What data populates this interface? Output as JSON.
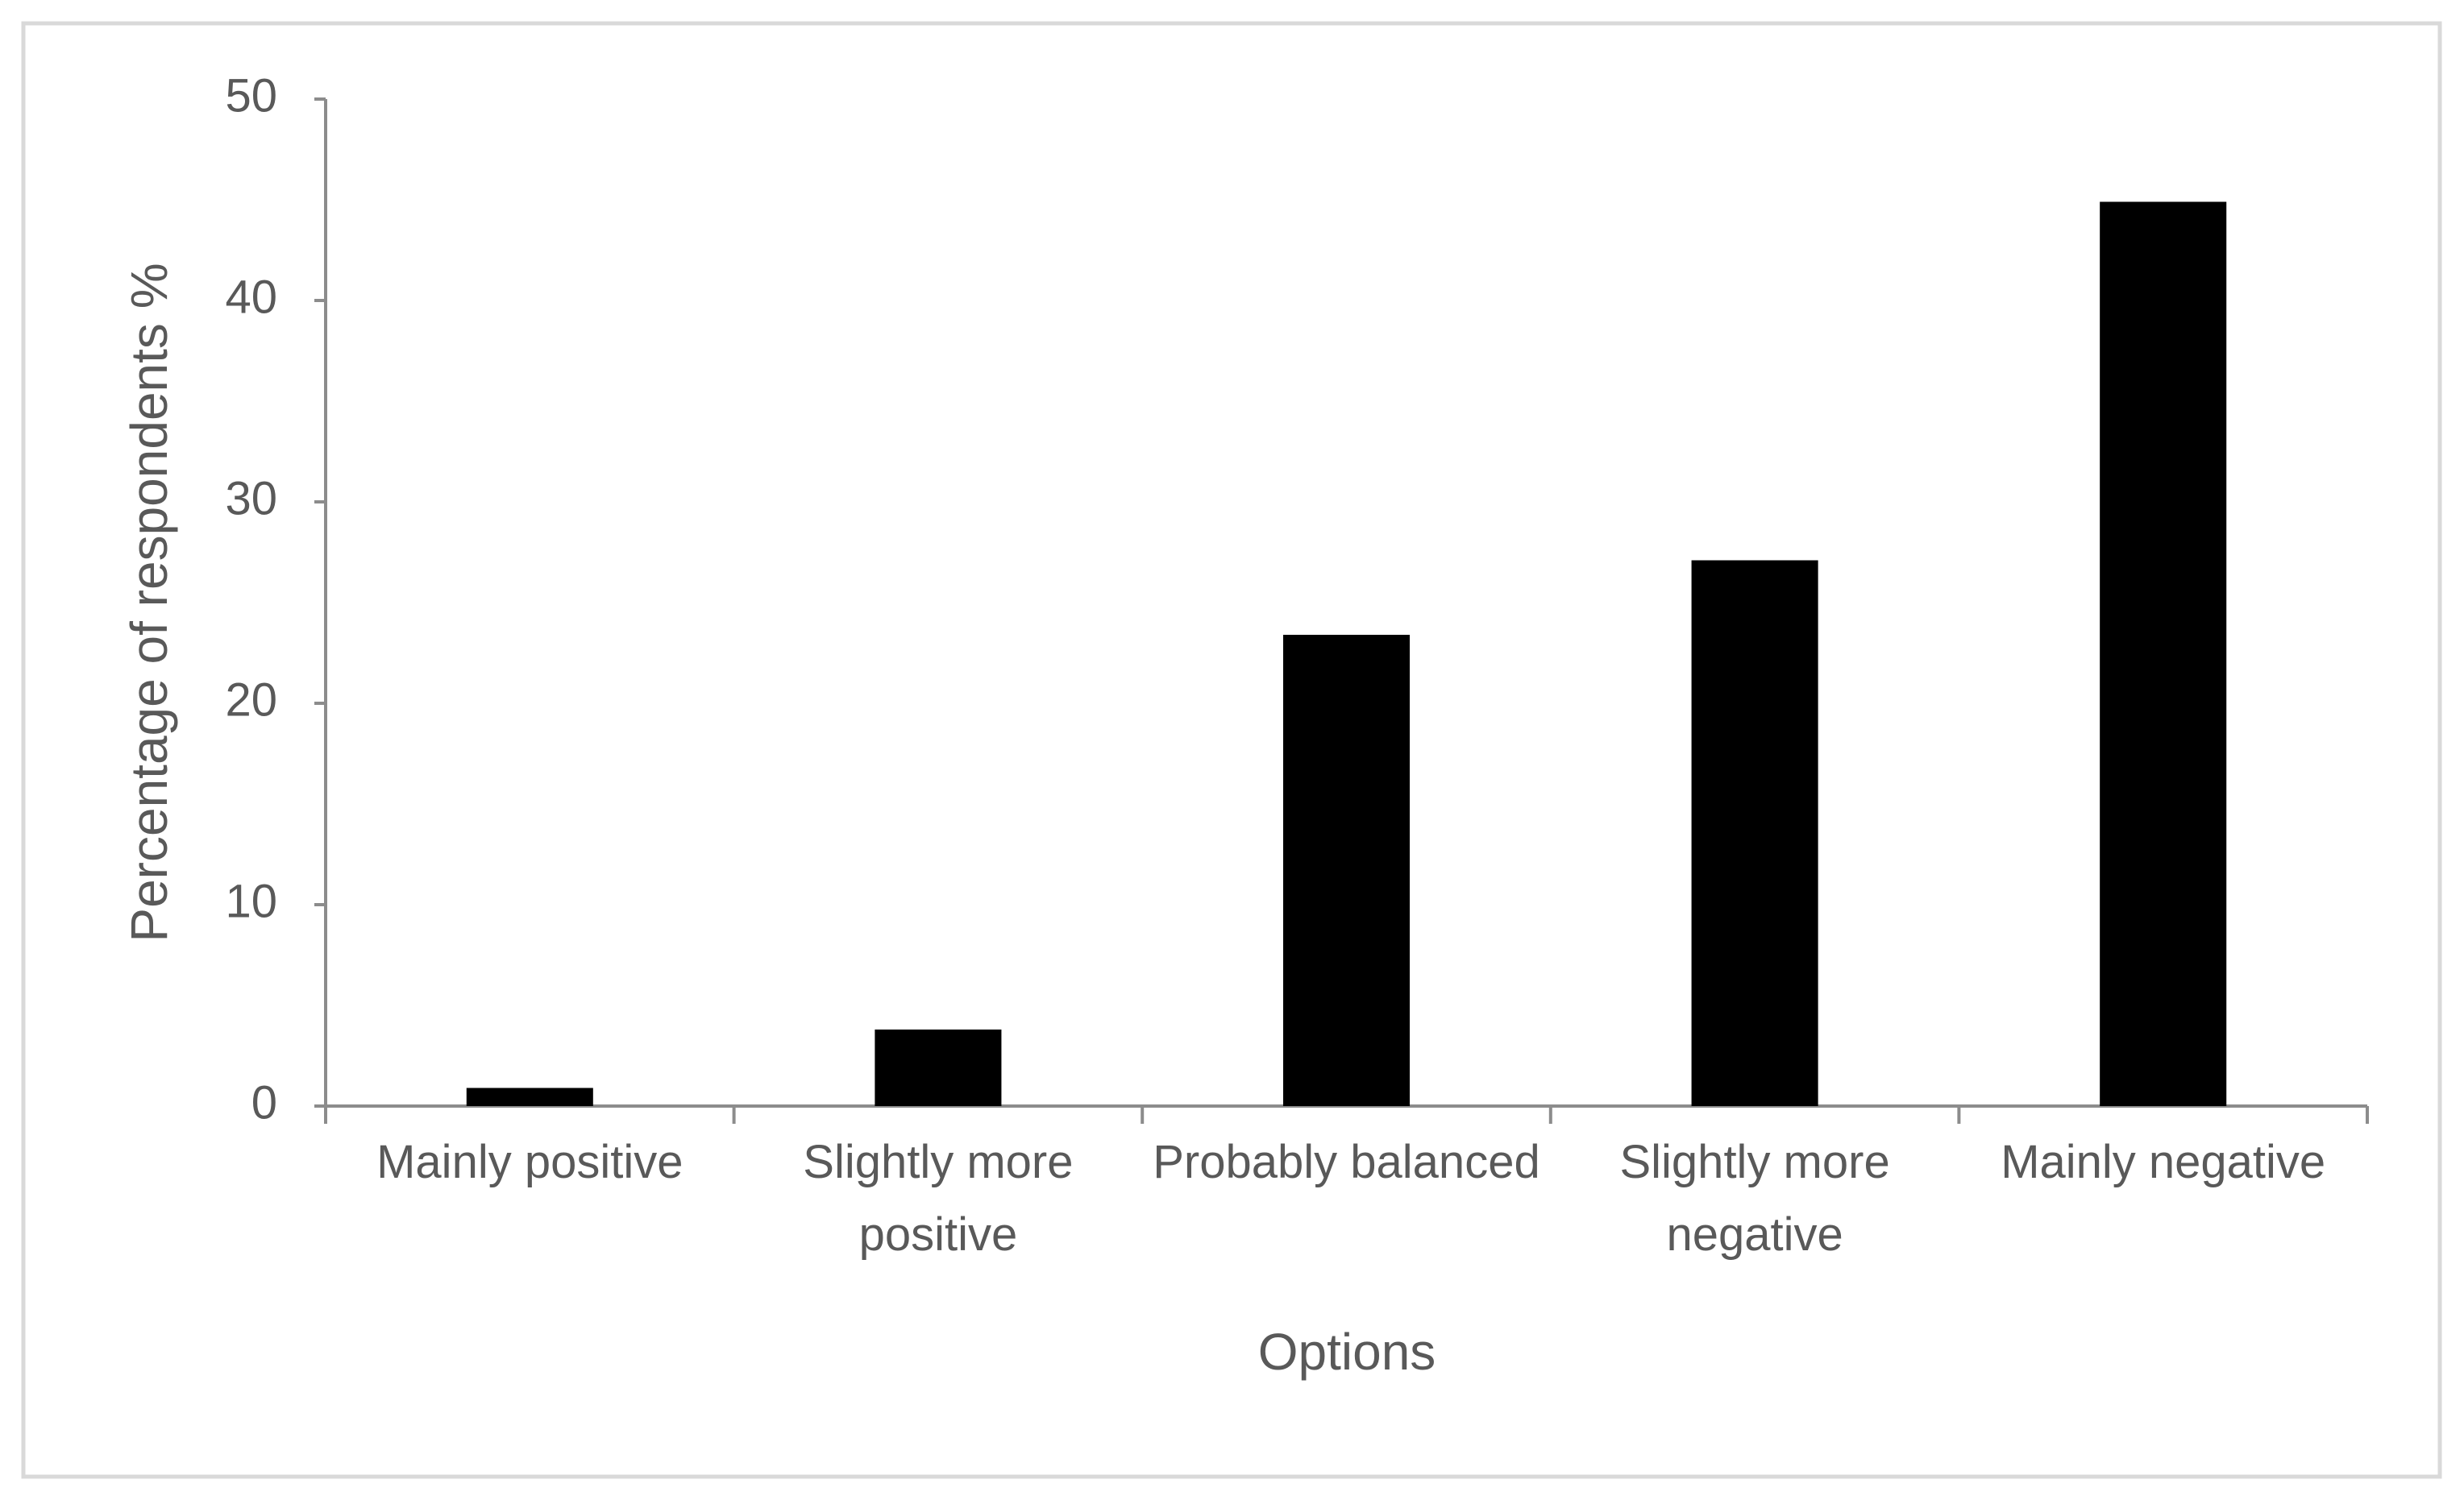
{
  "chart_data": {
    "type": "bar",
    "x_label": "Options",
    "y_label": "Percentage of respondents %",
    "categories": [
      "Mainly positive",
      "Slightly more positive",
      "Probably balanced",
      "Slightly more negative",
      "Mainly negative"
    ],
    "values": [
      0.9,
      3.8,
      23.4,
      27.1,
      44.9
    ],
    "color": "#000000",
    "ylim": [
      0,
      50
    ],
    "yticks": [
      0,
      10,
      20,
      30,
      40,
      50
    ],
    "grid": false
  }
}
